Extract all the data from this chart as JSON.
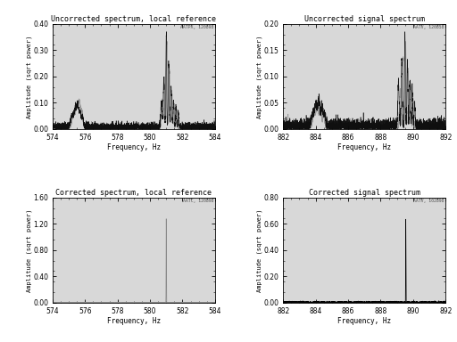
{
  "title_tl": "Uncorrected spectrum, local reference",
  "title_tr": "Uncorrected signal spectrum",
  "title_bl": "Corrected spectrum, local reference",
  "title_br": "Corrected signal spectrum",
  "xlabel": "Frequency, Hz",
  "ylabel": "Amplitude (sqrt power)",
  "watermark_tl": "AATPX, 120898",
  "watermark_tr": "AATV, 120858",
  "watermark_bl": "AATC, 120898",
  "watermark_br": "AATV, 102898",
  "xlim_left": [
    574,
    584
  ],
  "xlim_right": [
    882,
    892
  ],
  "ylim_tl": [
    0,
    0.4
  ],
  "ylim_tr": [
    0,
    0.2
  ],
  "ylim_bl": [
    0,
    1.6
  ],
  "ylim_br": [
    0,
    0.8
  ],
  "yticks_tl": [
    0.0,
    0.1,
    0.2,
    0.3,
    0.4
  ],
  "yticks_tr": [
    0.0,
    0.05,
    0.1,
    0.15,
    0.2
  ],
  "yticks_bl": [
    0.0,
    0.4,
    0.8,
    1.2,
    1.6
  ],
  "yticks_br": [
    0.0,
    0.2,
    0.4,
    0.6,
    0.8
  ],
  "xticks_left": [
    574,
    576,
    578,
    580,
    582,
    584
  ],
  "xticks_right": [
    882,
    884,
    886,
    888,
    890,
    892
  ],
  "bg_color": "#ffffff",
  "plot_bg": "#d8d8d8",
  "line_color_black": "#000000",
  "line_color_gray": "#888888"
}
